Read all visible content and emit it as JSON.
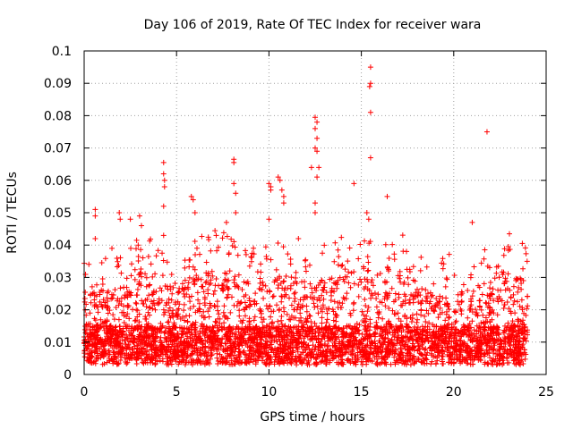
{
  "chart_data": {
    "type": "scatter",
    "title": "Day 106 of 2019, Rate Of TEC Index for receiver wara",
    "xlabel": "GPS time / hours",
    "ylabel": "ROTI / TECUs",
    "xlim": [
      0,
      25
    ],
    "ylim": [
      0,
      0.1
    ],
    "grid": true,
    "x_ticks": [
      0,
      5,
      10,
      15,
      20,
      25
    ],
    "x_tick_labels": [
      "0",
      "5",
      "10",
      "15",
      "20",
      "25"
    ],
    "y_ticks": [
      0,
      0.01,
      0.02,
      0.03,
      0.04,
      0.05,
      0.06,
      0.07,
      0.08,
      0.09,
      0.1
    ],
    "y_tick_labels": [
      "0",
      "0.01",
      "0.02",
      "0.03",
      "0.04",
      "0.05",
      "0.06",
      "0.07",
      "0.08",
      "0.09",
      "0.1"
    ],
    "marker": "+",
    "series": [
      {
        "name": "ROTI",
        "color": "#ff0000",
        "baseline_profile_description_values": {
          "hours": [
            0,
            1,
            2,
            3,
            4,
            5,
            6,
            7,
            8,
            9,
            10,
            11,
            12,
            13,
            14,
            15,
            16,
            17,
            18,
            19,
            20,
            21,
            22,
            23,
            24
          ],
          "typical_upper_roti": [
            0.025,
            0.028,
            0.03,
            0.035,
            0.03,
            0.03,
            0.033,
            0.035,
            0.035,
            0.03,
            0.032,
            0.035,
            0.03,
            0.03,
            0.035,
            0.033,
            0.03,
            0.035,
            0.03,
            0.025,
            0.028,
            0.025,
            0.033,
            0.035,
            0.03
          ]
        },
        "outlier_points": [
          {
            "x": 0.6,
            "y": 0.051
          },
          {
            "x": 0.6,
            "y": 0.049
          },
          {
            "x": 0.6,
            "y": 0.042
          },
          {
            "x": 1.9,
            "y": 0.05
          },
          {
            "x": 1.95,
            "y": 0.048
          },
          {
            "x": 2.5,
            "y": 0.048
          },
          {
            "x": 3.0,
            "y": 0.049
          },
          {
            "x": 3.1,
            "y": 0.046
          },
          {
            "x": 4.3,
            "y": 0.0655
          },
          {
            "x": 4.3,
            "y": 0.062
          },
          {
            "x": 4.35,
            "y": 0.06
          },
          {
            "x": 4.35,
            "y": 0.058
          },
          {
            "x": 4.3,
            "y": 0.052
          },
          {
            "x": 4.3,
            "y": 0.043
          },
          {
            "x": 5.8,
            "y": 0.055
          },
          {
            "x": 5.9,
            "y": 0.054
          },
          {
            "x": 6.0,
            "y": 0.05
          },
          {
            "x": 7.7,
            "y": 0.047
          },
          {
            "x": 8.1,
            "y": 0.0665
          },
          {
            "x": 8.1,
            "y": 0.0655
          },
          {
            "x": 8.1,
            "y": 0.059
          },
          {
            "x": 8.2,
            "y": 0.056
          },
          {
            "x": 8.2,
            "y": 0.05
          },
          {
            "x": 10.0,
            "y": 0.059
          },
          {
            "x": 10.1,
            "y": 0.058
          },
          {
            "x": 10.1,
            "y": 0.057
          },
          {
            "x": 10.0,
            "y": 0.048
          },
          {
            "x": 10.5,
            "y": 0.061
          },
          {
            "x": 10.6,
            "y": 0.06
          },
          {
            "x": 10.7,
            "y": 0.057
          },
          {
            "x": 10.8,
            "y": 0.055
          },
          {
            "x": 10.8,
            "y": 0.053
          },
          {
            "x": 12.3,
            "y": 0.064
          },
          {
            "x": 12.5,
            "y": 0.0795
          },
          {
            "x": 12.6,
            "y": 0.078
          },
          {
            "x": 12.5,
            "y": 0.076
          },
          {
            "x": 12.6,
            "y": 0.073
          },
          {
            "x": 12.5,
            "y": 0.07
          },
          {
            "x": 12.6,
            "y": 0.069
          },
          {
            "x": 12.7,
            "y": 0.064
          },
          {
            "x": 12.6,
            "y": 0.061
          },
          {
            "x": 12.5,
            "y": 0.053
          },
          {
            "x": 12.5,
            "y": 0.05
          },
          {
            "x": 14.6,
            "y": 0.059
          },
          {
            "x": 15.3,
            "y": 0.05
          },
          {
            "x": 15.4,
            "y": 0.048
          },
          {
            "x": 15.5,
            "y": 0.095
          },
          {
            "x": 15.5,
            "y": 0.09
          },
          {
            "x": 15.45,
            "y": 0.089
          },
          {
            "x": 15.5,
            "y": 0.081
          },
          {
            "x": 15.5,
            "y": 0.067
          },
          {
            "x": 16.4,
            "y": 0.055
          },
          {
            "x": 21.0,
            "y": 0.047
          },
          {
            "x": 21.8,
            "y": 0.075
          }
        ]
      }
    ]
  }
}
